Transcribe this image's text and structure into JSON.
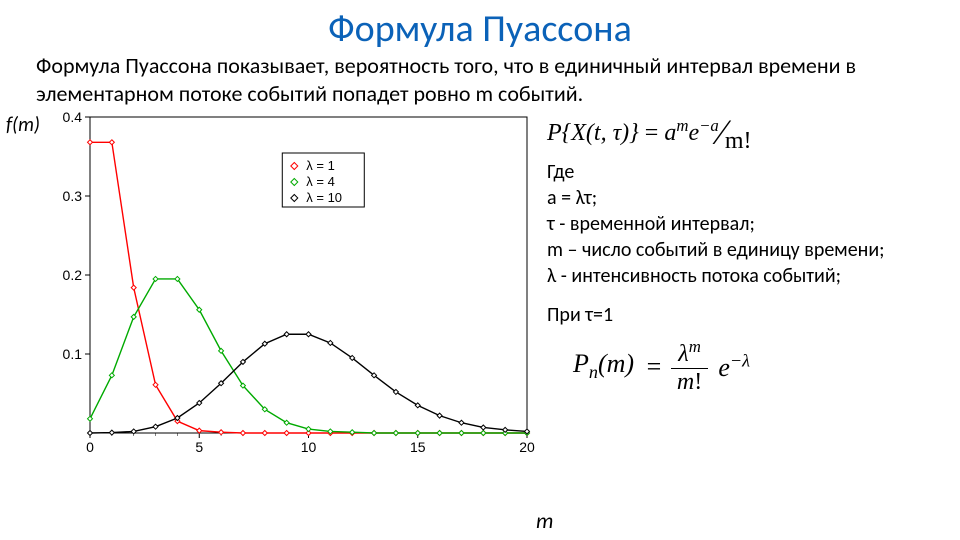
{
  "title": "Формула Пуассона",
  "intro": "Формула Пуассона показывает, вероятность того, что в единичный интервал времени в элементарном потоке событий попадет ровно m событий.",
  "yAxisLabel": "f(m)",
  "xAxisLabel": "m",
  "mainFormula": {
    "lhs": "P{X(t, τ)}",
    "numerator": "aᵐe⁻ᵃ",
    "denominator": "m!"
  },
  "where": {
    "heading": "Где",
    "lines": [
      "a = λτ;",
      "τ - временной интервал;",
      "m – число событий в единицу времени;",
      "λ - интенсивность потока событий;"
    ]
  },
  "condition": "При τ=1",
  "secondFormula": {
    "lhs_P": "P",
    "lhs_sub": "n",
    "lhs_arg": "(m)",
    "frac_top": "λᵐ",
    "frac_bot": "m!",
    "tail": "e⁻λ"
  },
  "chart": {
    "type": "line",
    "xlim": [
      0,
      20
    ],
    "ylim": [
      0,
      0.4
    ],
    "xtick_step": 5,
    "ytick_step": 0.1,
    "background_color": "#ffffff",
    "axis_color": "#000000",
    "legend": {
      "border_color": "#000000",
      "items": [
        {
          "label": "λ = 1",
          "color": "#ff0000",
          "marker": "diamond"
        },
        {
          "label": "λ = 4",
          "color": "#00aa00",
          "marker": "diamond"
        },
        {
          "label": "λ = 10",
          "color": "#000000",
          "marker": "diamond"
        }
      ]
    },
    "series": [
      {
        "color": "#ff0000",
        "line_width": 1.4,
        "marker": "diamond",
        "marker_size": 5,
        "x": [
          0,
          1,
          2,
          3,
          4,
          5,
          6,
          7,
          8,
          9,
          10,
          11,
          12,
          13,
          14,
          15,
          16,
          17,
          18,
          19,
          20
        ],
        "y": [
          0.368,
          0.368,
          0.184,
          0.061,
          0.015,
          0.003,
          0.001,
          0,
          0,
          0,
          0,
          0,
          0,
          0,
          0,
          0,
          0,
          0,
          0,
          0,
          0
        ]
      },
      {
        "color": "#00aa00",
        "line_width": 1.4,
        "marker": "diamond",
        "marker_size": 5,
        "x": [
          0,
          1,
          2,
          3,
          4,
          5,
          6,
          7,
          8,
          9,
          10,
          11,
          12,
          13,
          14,
          15,
          16,
          17,
          18,
          19,
          20
        ],
        "y": [
          0.018,
          0.073,
          0.147,
          0.195,
          0.195,
          0.156,
          0.104,
          0.06,
          0.03,
          0.013,
          0.005,
          0.002,
          0.001,
          0,
          0,
          0,
          0,
          0,
          0,
          0,
          0
        ]
      },
      {
        "color": "#000000",
        "line_width": 1.4,
        "marker": "diamond",
        "marker_size": 5,
        "x": [
          0,
          1,
          2,
          3,
          4,
          5,
          6,
          7,
          8,
          9,
          10,
          11,
          12,
          13,
          14,
          15,
          16,
          17,
          18,
          19,
          20
        ],
        "y": [
          0,
          0.0005,
          0.002,
          0.008,
          0.019,
          0.038,
          0.063,
          0.09,
          0.113,
          0.125,
          0.125,
          0.114,
          0.095,
          0.073,
          0.052,
          0.035,
          0.022,
          0.013,
          0.007,
          0.004,
          0.002
        ]
      }
    ]
  }
}
